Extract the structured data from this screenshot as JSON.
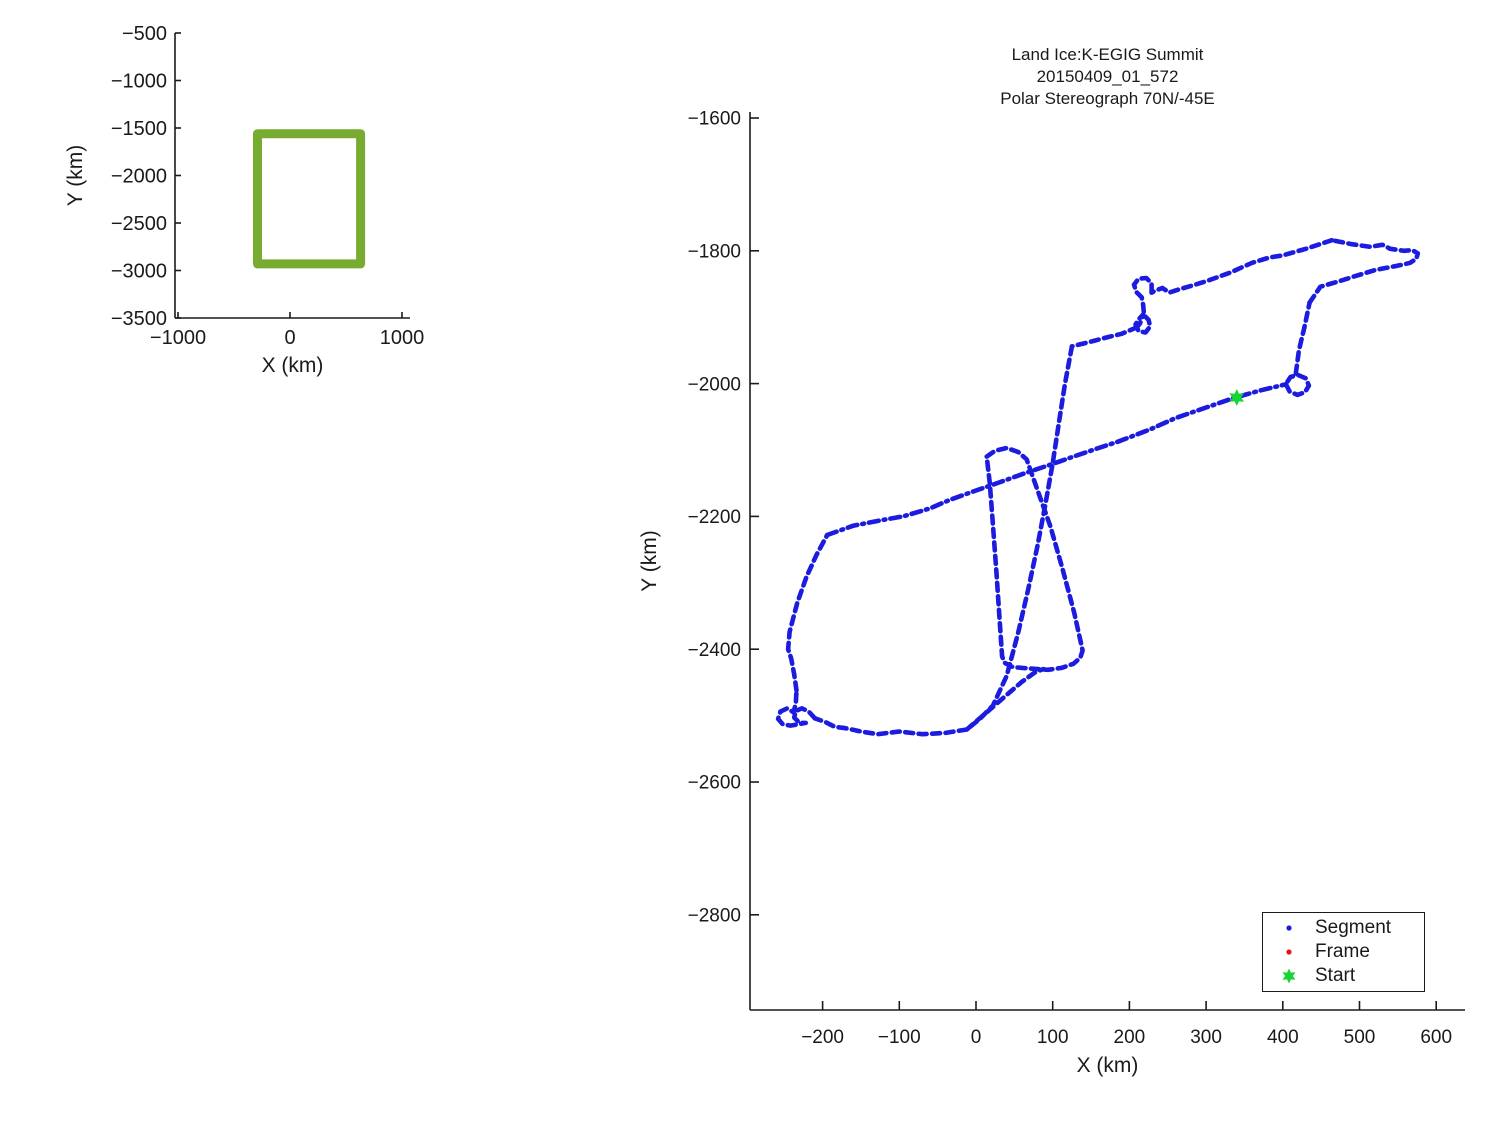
{
  "page": {
    "background": "#ffffff"
  },
  "title": {
    "line1": "Land Ice:K-EGIG Summit",
    "line2": "20150409_01_572",
    "line3": "Polar Stereograph 70N/-45E"
  },
  "legend": {
    "items": [
      {
        "label": "Segment",
        "marker": "dot",
        "color": "#1c1ce0"
      },
      {
        "label": "Frame",
        "marker": "dot",
        "color": "#e81414"
      },
      {
        "label": "Start",
        "marker": "hexagram",
        "color": "#17d435"
      }
    ]
  },
  "colors": {
    "track_blue": "#1c1ce0",
    "frame_red": "#e81414",
    "start_green": "#17d435",
    "coverage_green": "#77ac30",
    "axis": "#1a1a1a",
    "background": "#ffffff"
  },
  "chart_data": [
    {
      "type": "line",
      "name": "overview-map",
      "title": "",
      "xlabel": "X (km)",
      "ylabel": "Y (km)",
      "xlim": [
        -1027,
        1071
      ],
      "ylim": [
        -3500,
        -500
      ],
      "xticks": [
        -1000,
        0,
        1000
      ],
      "yticks": [
        -500,
        -1000,
        -1500,
        -2000,
        -2500,
        -3000,
        -3500
      ],
      "grid": false,
      "series": [
        {
          "name": "coverage-box",
          "style": "solid",
          "color": "#77ac30",
          "width": 9,
          "points": [
            [
              -290,
              -1560
            ],
            [
              630,
              -1560
            ],
            [
              630,
              -2930
            ],
            [
              -290,
              -2930
            ],
            [
              -290,
              -1560
            ]
          ]
        }
      ]
    },
    {
      "type": "scatter",
      "name": "flight-trajectory",
      "title": "Land Ice:K-EGIG Summit 20150409_01_572 Polar Stereograph 70N/-45E",
      "xlabel": "X (km)",
      "ylabel": "Y (km)",
      "xlim": [
        -295,
        638
      ],
      "ylim": [
        -2943,
        -1591
      ],
      "xticks": [
        -200,
        -100,
        0,
        100,
        200,
        300,
        400,
        500,
        600
      ],
      "yticks": [
        -1600,
        -1800,
        -2000,
        -2200,
        -2400,
        -2600,
        -2800
      ],
      "grid": false,
      "legend_position": "southeast",
      "start_marker": {
        "x": 340,
        "y": -2021,
        "color": "#17d435",
        "shape": "hexagram"
      },
      "series": [
        {
          "name": "transit-sw-ne",
          "style": "dashdot",
          "color": "#1c1ce0",
          "width": 4.6,
          "points": [
            [
              -194,
              -2228
            ],
            [
              -160,
              -2214
            ],
            [
              -120,
              -2205
            ],
            [
              -95,
              -2200
            ],
            [
              -60,
              -2188
            ],
            [
              -34,
              -2175
            ],
            [
              0,
              -2161
            ],
            [
              30,
              -2149
            ],
            [
              66,
              -2134
            ],
            [
              100,
              -2121
            ],
            [
              127,
              -2110
            ],
            [
              160,
              -2097
            ],
            [
              184,
              -2088
            ],
            [
              227,
              -2069
            ],
            [
              260,
              -2052
            ],
            [
              300,
              -2036
            ],
            [
              338,
              -2021
            ],
            [
              372,
              -2010
            ],
            [
              404,
              -2001
            ]
          ]
        },
        {
          "name": "turn-loop-east",
          "style": "dash",
          "color": "#1c1ce0",
          "width": 4.6,
          "points": [
            [
              404,
              -2001
            ],
            [
              409,
              -2012
            ],
            [
              419,
              -2017
            ],
            [
              429,
              -2013
            ],
            [
              434,
              -2003
            ],
            [
              430,
              -1992
            ],
            [
              420,
              -1987
            ],
            [
              410,
              -1990
            ],
            [
              405,
              -1999
            ]
          ]
        },
        {
          "name": "climb-north-leg",
          "style": "dash",
          "color": "#1c1ce0",
          "width": 4.6,
          "points": [
            [
              417,
              -1985
            ],
            [
              421,
              -1950
            ],
            [
              428,
              -1916
            ],
            [
              435,
              -1878
            ]
          ]
        },
        {
          "name": "northeast-limb-and-hook",
          "style": "dash",
          "color": "#1c1ce0",
          "width": 4.6,
          "points": [
            [
              435,
              -1878
            ],
            [
              449,
              -1854
            ],
            [
              470,
              -1847
            ],
            [
              492,
              -1839
            ],
            [
              520,
              -1829
            ],
            [
              543,
              -1824
            ],
            [
              556,
              -1821
            ],
            [
              566,
              -1818
            ],
            [
              574,
              -1812
            ],
            [
              576,
              -1804
            ],
            [
              569,
              -1799
            ],
            [
              558,
              -1800
            ],
            [
              540,
              -1797
            ],
            [
              530,
              -1791
            ],
            [
              514,
              -1794
            ],
            [
              490,
              -1790
            ],
            [
              464,
              -1784
            ]
          ]
        },
        {
          "name": "ridge-diagonal",
          "style": "dash",
          "color": "#1c1ce0",
          "width": 4.6,
          "points": [
            [
              464,
              -1784
            ],
            [
              430,
              -1797
            ],
            [
              400,
              -1807
            ],
            [
              383,
              -1810
            ],
            [
              360,
              -1818
            ],
            [
              331,
              -1833
            ],
            [
              300,
              -1846
            ],
            [
              283,
              -1852
            ],
            [
              265,
              -1858
            ],
            [
              252,
              -1863
            ],
            [
              243,
              -1856
            ],
            [
              234,
              -1860
            ],
            [
              229,
              -1863
            ]
          ]
        },
        {
          "name": "figure-eight-loop",
          "style": "dash",
          "color": "#1c1ce0",
          "width": 4.6,
          "points": [
            [
              229,
              -1863
            ],
            [
              229,
              -1849
            ],
            [
              222,
              -1841
            ],
            [
              212,
              -1842
            ],
            [
              206,
              -1851
            ],
            [
              209,
              -1862
            ],
            [
              216,
              -1870
            ],
            [
              218,
              -1882
            ],
            [
              219,
              -1897
            ],
            [
              225,
              -1904
            ],
            [
              227,
              -1914
            ],
            [
              221,
              -1923
            ],
            [
              212,
              -1921
            ],
            [
              208,
              -1911
            ],
            [
              213,
              -1902
            ],
            [
              218,
              -1896
            ],
            [
              214,
              -1909
            ],
            [
              210,
              -1915
            ]
          ]
        },
        {
          "name": "link-to-steep-leg",
          "style": "dash",
          "color": "#1c1ce0",
          "width": 4.6,
          "points": [
            [
              210,
              -1915
            ],
            [
              190,
              -1925
            ],
            [
              172,
              -1930
            ],
            [
              149,
              -1937
            ],
            [
              125,
              -1944
            ]
          ]
        },
        {
          "name": "steep-south-leg",
          "style": "dash",
          "color": "#1c1ce0",
          "width": 4.6,
          "points": [
            [
              125,
              -1944
            ],
            [
              116,
              -2000
            ],
            [
              108,
              -2060
            ],
            [
              100,
              -2120
            ],
            [
              90,
              -2185
            ],
            [
              80,
              -2245
            ],
            [
              68,
              -2310
            ],
            [
              55,
              -2375
            ],
            [
              40,
              -2440
            ],
            [
              22,
              -2485
            ],
            [
              5,
              -2505
            ],
            [
              -12,
              -2521
            ]
          ]
        },
        {
          "name": "south-boundary",
          "style": "dash",
          "color": "#1c1ce0",
          "width": 4.6,
          "points": [
            [
              -12,
              -2521
            ],
            [
              -40,
              -2526
            ],
            [
              -70,
              -2528
            ],
            [
              -100,
              -2524
            ],
            [
              -128,
              -2528
            ],
            [
              -150,
              -2524
            ],
            [
              -170,
              -2519
            ],
            [
              -184,
              -2517
            ],
            [
              -196,
              -2510
            ],
            [
              -210,
              -2504
            ]
          ]
        },
        {
          "name": "southwest-bow-loop",
          "style": "dash",
          "color": "#1c1ce0",
          "width": 4.6,
          "points": [
            [
              -210,
              -2504
            ],
            [
              -218,
              -2494
            ],
            [
              -227,
              -2489
            ],
            [
              -235,
              -2493
            ],
            [
              -237,
              -2503
            ],
            [
              -230,
              -2511
            ],
            [
              -222,
              -2511
            ],
            [
              -231,
              -2513
            ],
            [
              -242,
              -2515
            ],
            [
              -252,
              -2513
            ],
            [
              -258,
              -2505
            ],
            [
              -255,
              -2494
            ],
            [
              -246,
              -2489
            ],
            [
              -238,
              -2495
            ],
            [
              -235,
              -2482
            ],
            [
              -234,
              -2462
            ]
          ]
        },
        {
          "name": "west-boundary",
          "style": "dash",
          "color": "#1c1ce0",
          "width": 4.6,
          "points": [
            [
              -234,
              -2462
            ],
            [
              -237,
              -2438
            ],
            [
              -241,
              -2414
            ],
            [
              -245,
              -2400
            ],
            [
              -243,
              -2374
            ],
            [
              -233,
              -2330
            ],
            [
              -221,
              -2291
            ],
            [
              -208,
              -2258
            ],
            [
              -194,
              -2228
            ]
          ]
        },
        {
          "name": "survey-racetrack",
          "style": "dash",
          "color": "#1c1ce0",
          "width": 4.6,
          "points": [
            [
              14,
              -2110
            ],
            [
              25,
              -2101
            ],
            [
              40,
              -2097
            ],
            [
              55,
              -2103
            ],
            [
              66,
              -2114
            ],
            [
              80,
              -2160
            ],
            [
              97,
              -2215
            ],
            [
              113,
              -2280
            ],
            [
              128,
              -2345
            ],
            [
              139,
              -2402
            ],
            [
              136,
              -2413
            ],
            [
              127,
              -2422
            ],
            [
              112,
              -2428
            ],
            [
              94,
              -2431
            ],
            [
              70,
              -2429
            ],
            [
              48,
              -2427
            ],
            [
              38,
              -2421
            ],
            [
              34,
              -2411
            ],
            [
              31,
              -2360
            ],
            [
              27,
              -2290
            ],
            [
              22,
              -2212
            ],
            [
              18,
              -2150
            ],
            [
              14,
              -2110
            ]
          ]
        },
        {
          "name": "southeast-exit-leg",
          "style": "dash",
          "color": "#1c1ce0",
          "width": 4.6,
          "points": [
            [
              -12,
              -2521
            ],
            [
              12,
              -2497
            ],
            [
              38,
              -2471
            ],
            [
              60,
              -2449
            ],
            [
              78,
              -2434
            ],
            [
              88,
              -2430
            ]
          ]
        }
      ]
    }
  ]
}
